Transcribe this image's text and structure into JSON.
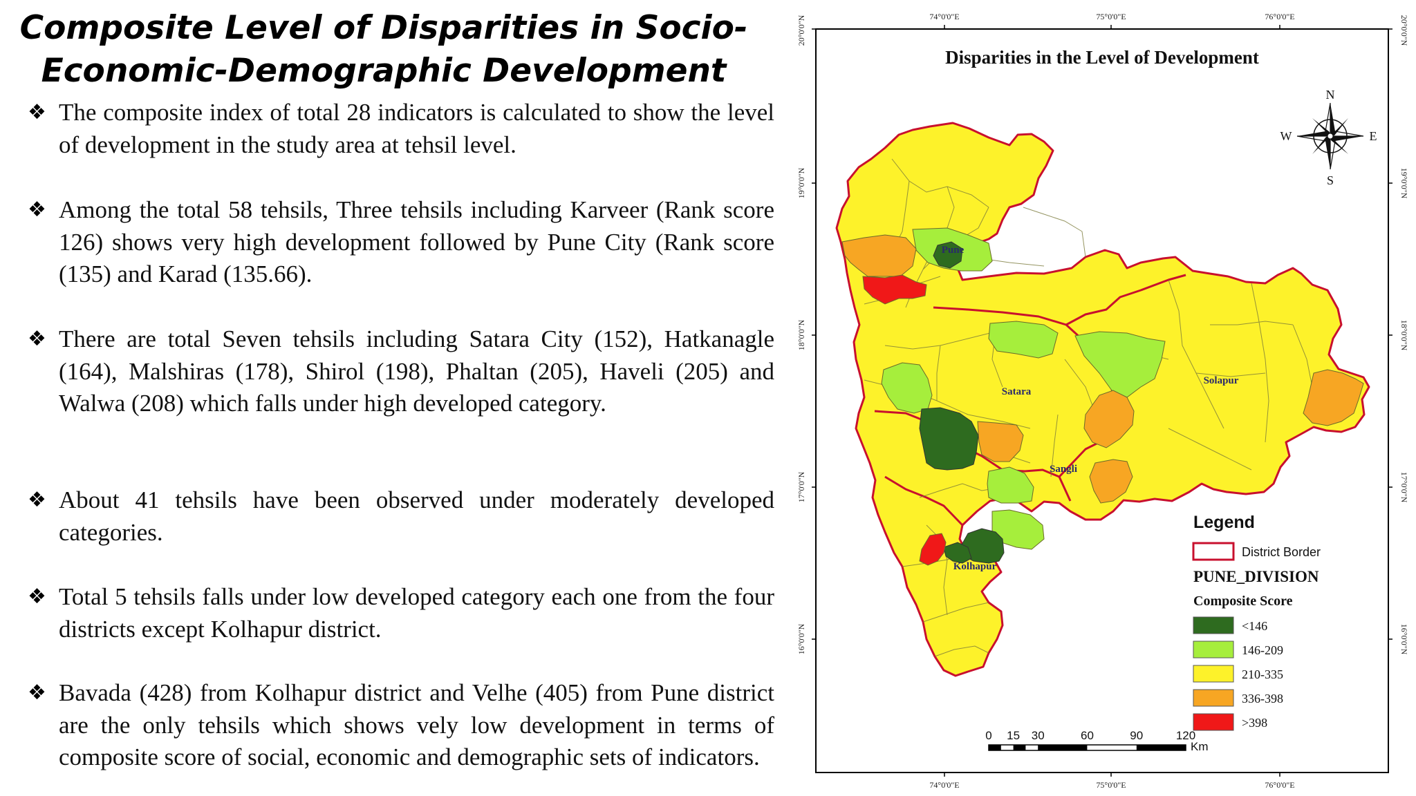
{
  "slide": {
    "title": "Composite Level of Disparities in Socio-Economic-Demographic Development",
    "bullet_marker": "❖",
    "bullets": [
      "The composite index of total 28 indicators is calculated to show the level of development in the study area at tehsil level.",
      "Among the total 58 tehsils, Three tehsils including Karveer (Rank score 126) shows very high development followed by Pune City (Rank score (135) and Karad (135.66).",
      "There are total Seven tehsils including Satara City (152), Hatkanagle (164), Malshiras (178), Shirol (198), Phaltan (205), Haveli (205) and Walwa (208) which falls under high developed category.",
      "About 41 tehsils have been observed under moderately developed categories.",
      "Total 5 tehsils falls under low developed category each one from the four districts except Kolhapur district.",
      "Bavada (428) from Kolhapur district and Velhe (405) from Pune district are the only tehsils which shows vely low development in terms of composite score of social, economic and demographic sets of indicators."
    ]
  },
  "map": {
    "title": "Disparities in the Level of Development",
    "longitude_labels": [
      "74°0'0\"E",
      "75°0'0\"E",
      "76°0'0\"E"
    ],
    "latitude_labels": [
      "20°0'0\"N",
      "19°0'0\"N",
      "18°0'0\"N",
      "17°0'0\"N",
      "16°0'0\"N"
    ],
    "district_labels": [
      "Pune",
      "Satara",
      "Solapur",
      "Sangli",
      "Kolhapur"
    ],
    "compass": {
      "n": "N",
      "s": "S",
      "e": "E",
      "w": "W"
    },
    "legend": {
      "title": "Legend",
      "border_label": "District Border",
      "division": "PUNE_DIVISION",
      "score_title": "Composite Score",
      "classes": [
        {
          "label": "<146",
          "color": "#2e6b1f"
        },
        {
          "label": "146-209",
          "color": "#a6ee3c"
        },
        {
          "label": "210-335",
          "color": "#fdf22a"
        },
        {
          "label": "336-398",
          "color": "#f7a623"
        },
        {
          "label": ">398",
          "color": "#f01818"
        }
      ],
      "border_color": "#c8102e"
    },
    "scale_bar": {
      "ticks": [
        "0",
        "15",
        "30",
        "60",
        "90",
        "120"
      ],
      "unit": "Km"
    }
  }
}
